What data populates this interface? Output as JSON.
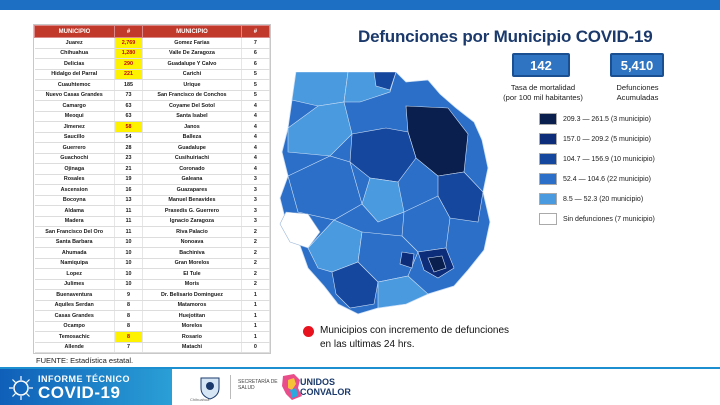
{
  "title": "Defunciones por Municipio COVID-19",
  "table": {
    "headers": [
      "MUNICIPIO",
      "#",
      "MUNICIPIO",
      "#"
    ],
    "rows": [
      [
        "Juarez",
        "2,769",
        "Gomez Farias",
        "7",
        true
      ],
      [
        "Chihuahua",
        "1,280",
        "Valle De Zaragoza",
        "6",
        true
      ],
      [
        "Delicias",
        "290",
        "Guadalupe Y Calvo",
        "6",
        true
      ],
      [
        "Hidalgo del Parral",
        "221",
        "Carichi",
        "5",
        true
      ],
      [
        "Cuauhtemoc",
        "185",
        "Urique",
        "5",
        false
      ],
      [
        "Nuevo Casas Grandes",
        "73",
        "San Francisco de Conchos",
        "5",
        false
      ],
      [
        "Camargo",
        "63",
        "Coyame Del Sotol",
        "4",
        false
      ],
      [
        "Meoqui",
        "63",
        "Santa Isabel",
        "4",
        false
      ],
      [
        "Jimenez",
        "58",
        "Janos",
        "4",
        true
      ],
      [
        "Saucillo",
        "54",
        "Balleza",
        "4",
        false
      ],
      [
        "Guerrero",
        "28",
        "Guadalupe",
        "4",
        false
      ],
      [
        "Guachochi",
        "23",
        "Cusihuiriachi",
        "4",
        false
      ],
      [
        "Ojinaga",
        "21",
        "Coronado",
        "4",
        false
      ],
      [
        "Rosales",
        "19",
        "Galeana",
        "3",
        false
      ],
      [
        "Ascension",
        "16",
        "Guazapares",
        "3",
        false
      ],
      [
        "Bocoyna",
        "13",
        "Manuel Benavides",
        "3",
        false
      ],
      [
        "Aldama",
        "11",
        "Praxedis G. Guerrero",
        "3",
        false
      ],
      [
        "Madera",
        "11",
        "Ignacio Zaragoza",
        "3",
        false
      ],
      [
        "San Francisco Del Oro",
        "11",
        "Riva Palacio",
        "2",
        false
      ],
      [
        "Santa Barbara",
        "10",
        "Nonoava",
        "2",
        false
      ],
      [
        "Ahumada",
        "10",
        "Bachiniva",
        "2",
        false
      ],
      [
        "Namiquipa",
        "10",
        "Gran Morelos",
        "2",
        false
      ],
      [
        "Lopez",
        "10",
        "El Tule",
        "2",
        false
      ],
      [
        "Julimes",
        "10",
        "Moris",
        "2",
        false
      ],
      [
        "Buenaventura",
        "9",
        "Dr. Belisario Dominguez",
        "1",
        false
      ],
      [
        "Aquiles Serdan",
        "8",
        "Matamoros",
        "1",
        false
      ],
      [
        "Casas Grandes",
        "8",
        "Huejotitan",
        "1",
        false
      ],
      [
        "Ocampo",
        "8",
        "Morelos",
        "1",
        false
      ],
      [
        "Temosachic",
        "8",
        "Rosario",
        "1",
        true
      ],
      [
        "Allende",
        "7",
        "Matachi",
        "0",
        false
      ]
    ]
  },
  "source": "FUENTE: Estadística estatal.",
  "stats": {
    "mortality_value": "142",
    "mortality_label": "Tasa de mortalidad\n(por 100 mil habitantes)",
    "deaths_value": "5,410",
    "deaths_label": "Defunciones\nAcumuladas"
  },
  "legend": [
    {
      "color": "#0a1f4d",
      "label": "209.3 — 261.5 (3 municipio)"
    },
    {
      "color": "#0d2d7a",
      "label": "157.0 — 209.2 (5 municipio)"
    },
    {
      "color": "#16479e",
      "label": "104.7 — 156.9 (10 municipio)"
    },
    {
      "color": "#2b6fc8",
      "label": "52.4 — 104.6 (22 municipio)"
    },
    {
      "color": "#4a9ae0",
      "label": "8.5 — 52.3 (20 municipio)"
    },
    {
      "color": "#ffffff",
      "label": "Sin defunciones (7 municipio)"
    }
  ],
  "note": "Municipios con incremento de defunciones en las ultimas 24 hrs.",
  "banner": {
    "line1": "INFORME TÉCNICO",
    "line2": "COVID-19",
    "gov": "Chihuahua",
    "secretaria": "SECRETARÍA DE SALUD",
    "unidos1": "UNIDOS",
    "unidos2": "CONVALOR"
  }
}
